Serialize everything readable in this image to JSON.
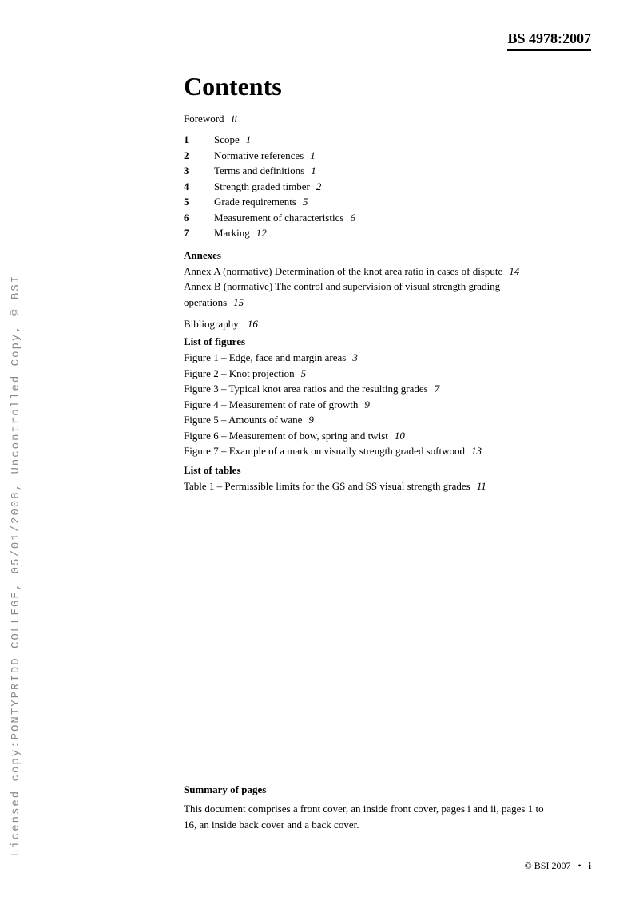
{
  "sideText": "Licensed copy:PONTYPRIDD COLLEGE, 05/01/2008, Uncontrolled Copy, © BSI",
  "headerCode": "BS 4978:2007",
  "title": "Contents",
  "foreword": {
    "label": "Foreword",
    "page": "ii"
  },
  "numbered": [
    {
      "num": "1",
      "label": "Scope",
      "page": "1"
    },
    {
      "num": "2",
      "label": "Normative references",
      "page": "1"
    },
    {
      "num": "3",
      "label": "Terms and definitions",
      "page": "1"
    },
    {
      "num": "4",
      "label": "Strength graded timber",
      "page": "2"
    },
    {
      "num": "5",
      "label": "Grade requirements",
      "page": "5"
    },
    {
      "num": "6",
      "label": "Measurement of characteristics",
      "page": "6"
    },
    {
      "num": "7",
      "label": "Marking",
      "page": "12"
    }
  ],
  "annexesHead": "Annexes",
  "annexes": [
    {
      "text": "Annex A (normative) Determination of the knot area ratio in cases of dispute",
      "page": "14"
    },
    {
      "text": "Annex B (normative) The control and supervision of visual strength grading operations",
      "page": "15"
    }
  ],
  "biblio": {
    "label": "Bibliography",
    "page": "16"
  },
  "figuresHead": "List of figures",
  "figures": [
    {
      "text": "Figure 1 – Edge, face and margin areas",
      "page": "3"
    },
    {
      "text": "Figure 2 – Knot projection",
      "page": "5"
    },
    {
      "text": "Figure 3 – Typical knot area ratios and the resulting grades",
      "page": "7"
    },
    {
      "text": "Figure 4 – Measurement of rate of growth",
      "page": "9"
    },
    {
      "text": "Figure 5 – Amounts of wane",
      "page": "9"
    },
    {
      "text": "Figure 6 – Measurement of bow, spring and twist",
      "page": "10"
    },
    {
      "text": "Figure 7 – Example of a mark on visually strength graded softwood",
      "page": "13"
    }
  ],
  "tablesHead": "List of tables",
  "tables": [
    {
      "text": "Table 1 – Permissible limits for the GS and SS visual strength grades",
      "page": "11"
    }
  ],
  "summaryHead": "Summary of pages",
  "summaryText": "This document comprises a front cover, an inside front cover, pages i and ii, pages 1 to 16, an inside back cover and a back cover.",
  "footerCopyright": "© BSI 2007",
  "footerPage": "i"
}
